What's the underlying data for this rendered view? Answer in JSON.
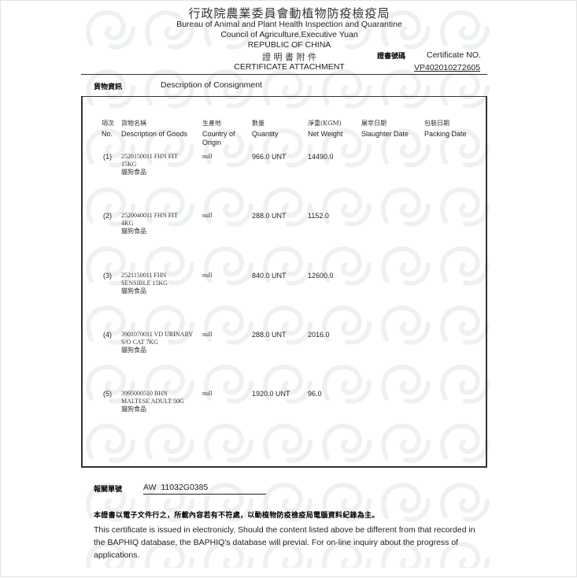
{
  "header": {
    "agency_zh": "行政院農業委員會動植物防疫檢疫局",
    "agency_en": "Bureau of Animal and Plant Health Inspection and Quarantine",
    "council": "Council of Agriculture,Executive Yuan",
    "country": "REPUBLIC OF CHINA",
    "doc_title_zh": "證 明 書 附 件",
    "doc_title_en": "CERTIFICATE ATTACHMENT",
    "cert_no_label_zh": "證書號碼",
    "cert_no_label_en": "Certificate NO.",
    "cert_no": "VP402010272605"
  },
  "consignment": {
    "label_zh": "貨物資訊",
    "label_en": "Description of Consignment",
    "columns": [
      {
        "zh": "項次",
        "en": "No."
      },
      {
        "zh": "貨物名稱",
        "en": "Description of Goods"
      },
      {
        "zh": "生產地",
        "en": "Country of Origin"
      },
      {
        "zh": "數量",
        "en": "Quantity"
      },
      {
        "zh": "淨重(KGM)",
        "en": "Net Weight"
      },
      {
        "zh": "屠宰日期",
        "en": "Slaughter Date"
      },
      {
        "zh": "包裝日期",
        "en": "Packing Date"
      }
    ],
    "rows": [
      {
        "no": "(1)",
        "desc": [
          "2520150011 FHN FIT",
          "15KG",
          "貓狗食品"
        ],
        "origin": "null",
        "quantity": "966.0 UNT",
        "net_weight": "14490.0",
        "slaughter": "",
        "packing": ""
      },
      {
        "no": "(2)",
        "desc": [
          "2520040011 FHN FIT",
          "4KG",
          "貓狗食品"
        ],
        "origin": "null",
        "quantity": "288.0 UNT",
        "net_weight": "1152.0",
        "slaughter": "",
        "packing": ""
      },
      {
        "no": "(3)",
        "desc": [
          "2521150011 FHN",
          "SENSIBLE 15KG",
          "貓狗食品"
        ],
        "origin": "null",
        "quantity": "840.0 UNT",
        "net_weight": "12600.0",
        "slaughter": "",
        "packing": ""
      },
      {
        "no": "(4)",
        "desc": [
          "3901070011 VD URINARY",
          "S/O CAT 7KG",
          "貓狗食品"
        ],
        "origin": "null",
        "quantity": "288.0 UNT",
        "net_weight": "2016.0",
        "slaughter": "",
        "packing": ""
      },
      {
        "no": "(5)",
        "desc": [
          "3995000510 BHN",
          "MALTESE ADULT 50G",
          "貓狗食品"
        ],
        "origin": "null",
        "quantity": "1920.0 UNT",
        "net_weight": "96.0",
        "slaughter": "",
        "packing": ""
      }
    ]
  },
  "customs": {
    "label_zh": "報關單號",
    "value": "AW  11032G0385"
  },
  "notice": {
    "zh": "本證書以電子文件行之，所載內容若有不符處，以動植物防疫檢疫局電腦資料紀錄為主。",
    "en": "This certificate is issued in electronicly. Should the content listed above be different from that recorded in the BAPHIQ database, the BAPHIQ's database will previal. For on-line inquiry about the progress of applications."
  }
}
